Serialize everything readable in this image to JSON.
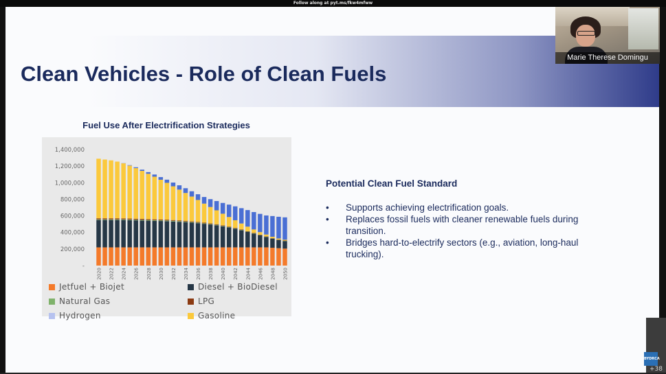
{
  "topbar": {
    "text": "Follow along at pyt.ms/fkw4mfww"
  },
  "slide": {
    "title": "Clean Vehicles - Role of Clean Fuels",
    "chart_title": "Fuel Use After Electrification Strategies",
    "cfs_heading": "Potential Clean Fuel Standard",
    "bullet_glyph": "•",
    "bullets": [
      "Supports achieving electrification goals.",
      "Replaces fossil fuels with cleaner renewable fuels during transition.",
      "Bridges hard-to-electrify sectors (e.g., aviation, long-haul trucking)."
    ]
  },
  "colors": {
    "title": "#1a2a5c",
    "jetfuel": "#f47a2a",
    "diesel": "#263746",
    "natural_gas": "#7fb26b",
    "lpg": "#8b3a12",
    "hydrogen": "#b6c2ef",
    "gasoline": "#fbc93c",
    "electric_band": "#4a6fd4"
  },
  "chart_data": {
    "type": "bar",
    "stacked": true,
    "title": "Fuel Use After Electrification Strategies",
    "xlabel": "",
    "ylabel": "",
    "ylim": [
      0,
      1400000
    ],
    "yticks": [
      {
        "value": 0,
        "label": "-"
      },
      {
        "value": 200000,
        "label": "200,000"
      },
      {
        "value": 400000,
        "label": "400,000"
      },
      {
        "value": 600000,
        "label": "600,000"
      },
      {
        "value": 800000,
        "label": "800,000"
      },
      {
        "value": 1000000,
        "label": "1,000,000"
      },
      {
        "value": 1200000,
        "label": "1,200,000"
      },
      {
        "value": 1400000,
        "label": "1,400,000"
      }
    ],
    "categories": [
      "2020",
      "2021",
      "2022",
      "2023",
      "2024",
      "2025",
      "2026",
      "2027",
      "2028",
      "2029",
      "2030",
      "2031",
      "2032",
      "2033",
      "2034",
      "2035",
      "2036",
      "2037",
      "2038",
      "2039",
      "2040",
      "2041",
      "2042",
      "2043",
      "2044",
      "2045",
      "2046",
      "2047",
      "2048",
      "2049",
      "2050"
    ],
    "x_tick_labels": [
      "2020",
      "2022",
      "2024",
      "2026",
      "2028",
      "2030",
      "2032",
      "2034",
      "2036",
      "2038",
      "2040",
      "2042",
      "2044",
      "2046",
      "2048",
      "2050"
    ],
    "legend_position": "bottom",
    "series": [
      {
        "name": "Jetfuel + Biojet",
        "color_key": "jetfuel",
        "values": [
          220000,
          220000,
          220000,
          220000,
          220000,
          220000,
          220000,
          220000,
          220000,
          220000,
          220000,
          220000,
          220000,
          220000,
          220000,
          220000,
          220000,
          220000,
          220000,
          220000,
          220000,
          220000,
          220000,
          220000,
          220000,
          220000,
          220000,
          220000,
          215000,
          210000,
          205000
        ]
      },
      {
        "name": "Diesel + BioDiesel",
        "color_key": "diesel",
        "values": [
          330000,
          330000,
          330000,
          330000,
          330000,
          328000,
          326000,
          324000,
          322000,
          320000,
          318000,
          316000,
          312000,
          308000,
          304000,
          298000,
          292000,
          284000,
          276000,
          266000,
          254000,
          240000,
          224000,
          206000,
          186000,
          166000,
          146000,
          126000,
          110000,
          98000,
          90000
        ]
      },
      {
        "name": "Natural Gas",
        "color_key": "natural_gas",
        "values": [
          8000,
          8000,
          8000,
          8000,
          8000,
          8000,
          8000,
          8000,
          8000,
          8000,
          8000,
          8000,
          8000,
          8000,
          7000,
          7000,
          7000,
          6000,
          6000,
          6000,
          5000,
          5000,
          5000,
          4000,
          4000,
          4000,
          3000,
          3000,
          3000,
          3000,
          3000
        ]
      },
      {
        "name": "LPG",
        "color_key": "lpg",
        "values": [
          12000,
          12000,
          12000,
          12000,
          11000,
          11000,
          11000,
          11000,
          10000,
          10000,
          10000,
          10000,
          9000,
          9000,
          9000,
          8000,
          8000,
          8000,
          7000,
          7000,
          7000,
          6000,
          6000,
          6000,
          5000,
          5000,
          5000,
          4000,
          4000,
          4000,
          4000
        ]
      },
      {
        "name": "Hydrogen",
        "color_key": "hydrogen",
        "values": [
          0,
          0,
          0,
          0,
          0,
          0,
          0,
          0,
          0,
          0,
          0,
          0,
          0,
          0,
          0,
          0,
          0,
          0,
          0,
          0,
          0,
          0,
          0,
          0,
          0,
          0,
          0,
          0,
          0,
          0,
          0
        ]
      },
      {
        "name": "Gasoline",
        "color_key": "gasoline",
        "values": [
          720000,
          710000,
          700000,
          685000,
          665000,
          640000,
          612000,
          580000,
          548000,
          515000,
          480000,
          445000,
          408000,
          372000,
          336000,
          300000,
          265000,
          230000,
          198000,
          168000,
          140000,
          115000,
          92000,
          72000,
          55000,
          41000,
          30000,
          22000,
          16000,
          12000,
          10000
        ]
      },
      {
        "name": "",
        "color_key": "electric_band",
        "values": [
          0,
          0,
          0,
          0,
          2000,
          5000,
          10000,
          15000,
          20000,
          26000,
          32000,
          38000,
          45000,
          52000,
          58000,
          64000,
          69000,
          80000,
          95000,
          112000,
          130000,
          150000,
          168000,
          185000,
          200000,
          210000,
          220000,
          230000,
          250000,
          262000,
          270000
        ]
      }
    ]
  },
  "legend": [
    {
      "label": "Jetfuel + Biojet",
      "color_key": "jetfuel"
    },
    {
      "label": "Diesel + BioDiesel",
      "color_key": "diesel"
    },
    {
      "label": "Natural Gas",
      "color_key": "natural_gas"
    },
    {
      "label": "LPG",
      "color_key": "lpg"
    },
    {
      "label": "Hydrogen",
      "color_key": "hydrogen"
    },
    {
      "label": "Gasoline",
      "color_key": "gasoline"
    }
  ],
  "webcam": {
    "name": "Marie Therese Domingu"
  },
  "sidebar": {
    "participant_count": "+38",
    "logo_text": "BYDRCA"
  }
}
